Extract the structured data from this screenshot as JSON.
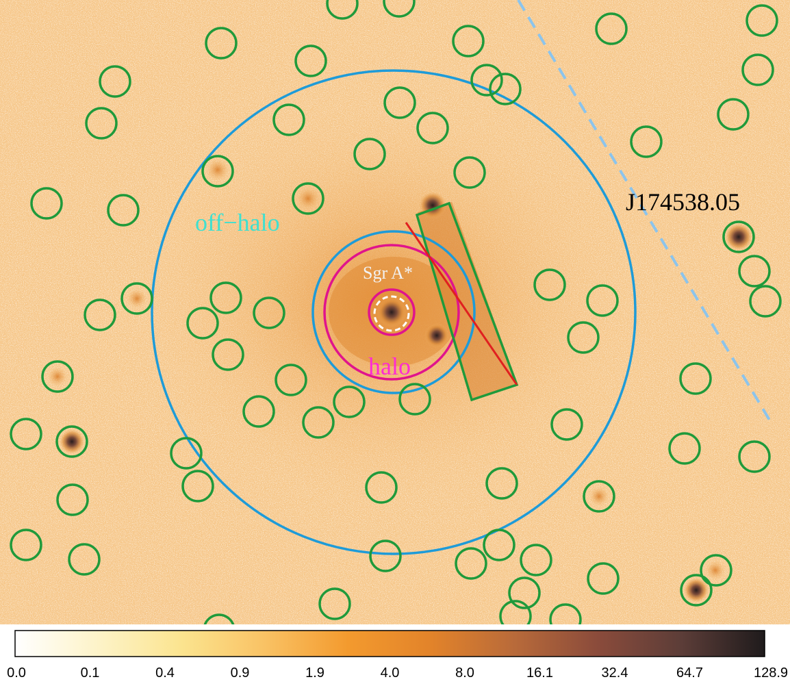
{
  "image": {
    "labels": {
      "source": "J174538.05",
      "sgra": "Sgr A*",
      "off_halo": "off−halo",
      "halo": "halo"
    },
    "colors": {
      "background_low": "#f6c78a",
      "background_high": "#e79436",
      "green_region": "#1f9a3b",
      "blue_region": "#1e9bd8",
      "magenta_region": "#e0148c",
      "red_line": "#e02020",
      "dashed_line": "#8cc4ec",
      "off_halo_text": "#3fe0d0",
      "halo_text": "#ff2ad4",
      "sgra_text": "#f2f2f2"
    }
  },
  "colorbar": {
    "ticks": [
      "0.0",
      "0.1",
      "0.4",
      "0.9",
      "1.9",
      "4.0",
      "8.0",
      "16.1",
      "32.4",
      "64.7",
      "128.9"
    ],
    "gradient": [
      "#ffffff",
      "#fdf3c8",
      "#fbe48f",
      "#f9c264",
      "#f39a2e",
      "#e2832a",
      "#b86a3a",
      "#8a4b3b",
      "#5c3d38",
      "#1f1b1c"
    ]
  }
}
